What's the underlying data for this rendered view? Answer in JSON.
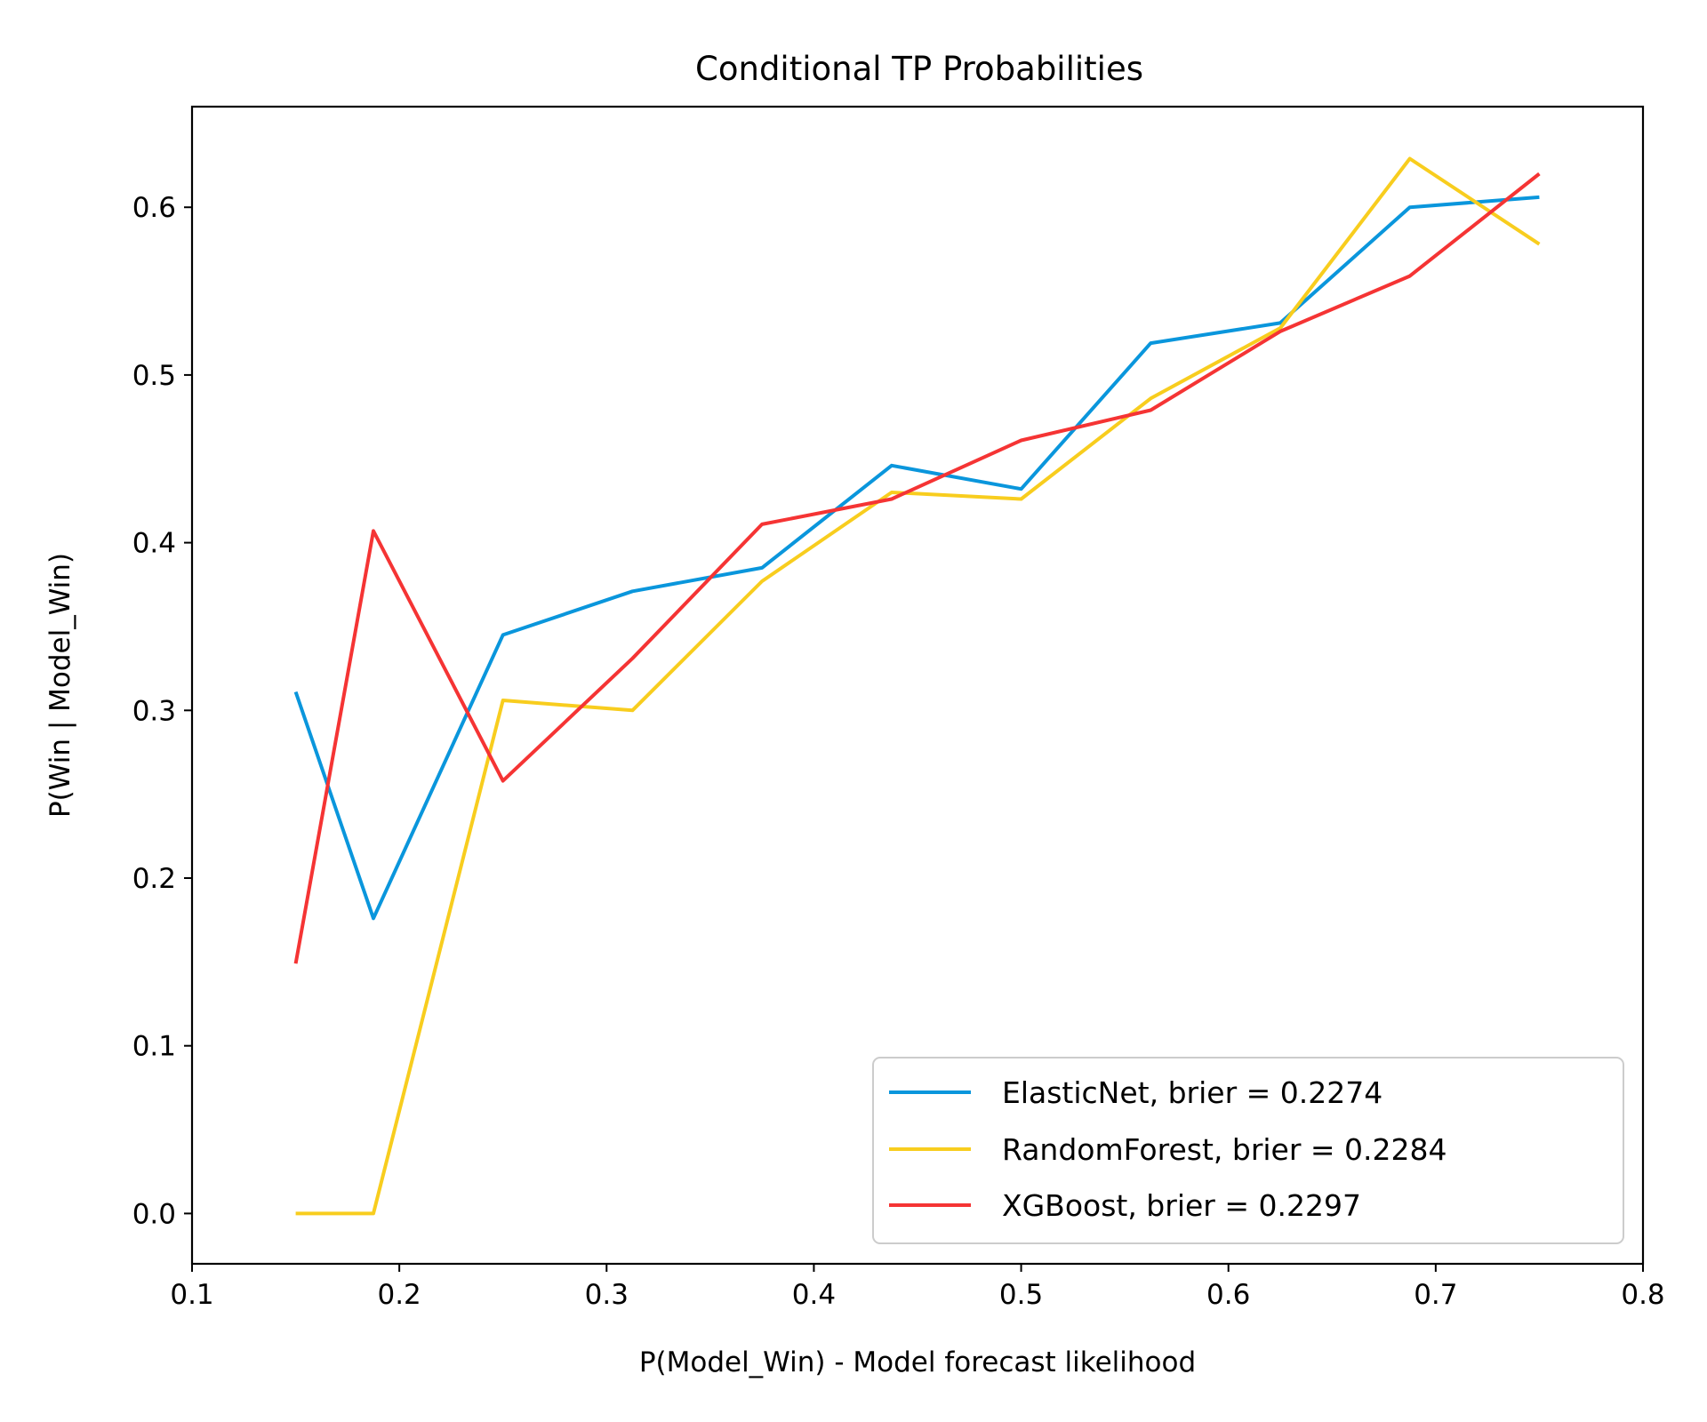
{
  "chart_data": {
    "type": "line",
    "title": "Conditional TP Probabilities",
    "xlabel": "P(Model_Win) - Model forecast likelihood",
    "ylabel": "P(Win | Model_Win)",
    "xlim": [
      0.1,
      0.8
    ],
    "ylim": [
      -0.03,
      0.66
    ],
    "xticks": [
      0.1,
      0.2,
      0.3,
      0.4,
      0.5,
      0.6,
      0.7,
      0.8
    ],
    "xtick_labels": [
      "0.1",
      "0.2",
      "0.3",
      "0.4",
      "0.5",
      "0.6",
      "0.7",
      "0.8"
    ],
    "yticks": [
      0.0,
      0.1,
      0.2,
      0.3,
      0.4,
      0.5,
      0.6
    ],
    "ytick_labels": [
      "0.0",
      "0.1",
      "0.2",
      "0.3",
      "0.4",
      "0.5",
      "0.6"
    ],
    "grid": false,
    "legend_position": "lower-right",
    "x": [
      0.15,
      0.1875,
      0.25,
      0.3125,
      0.375,
      0.4375,
      0.5,
      0.5625,
      0.625,
      0.6875,
      0.75
    ],
    "series": [
      {
        "name": "ElasticNet, brier = 0.2274",
        "color": "#0a96dc",
        "values": [
          0.311,
          0.176,
          0.345,
          0.371,
          0.385,
          0.446,
          0.432,
          0.519,
          0.531,
          0.6,
          0.606
        ]
      },
      {
        "name": "RandomForest, brier = 0.2284",
        "color": "#f8cd1e",
        "values": [
          0.0,
          0.0,
          0.306,
          0.3,
          0.377,
          0.43,
          0.426,
          0.486,
          0.528,
          0.629,
          0.578
        ]
      },
      {
        "name": "XGBoost, brier = 0.2297",
        "color": "#f53434",
        "values": [
          0.149,
          0.407,
          0.258,
          0.331,
          0.411,
          0.426,
          0.461,
          0.479,
          0.526,
          0.559,
          0.62
        ]
      }
    ]
  }
}
